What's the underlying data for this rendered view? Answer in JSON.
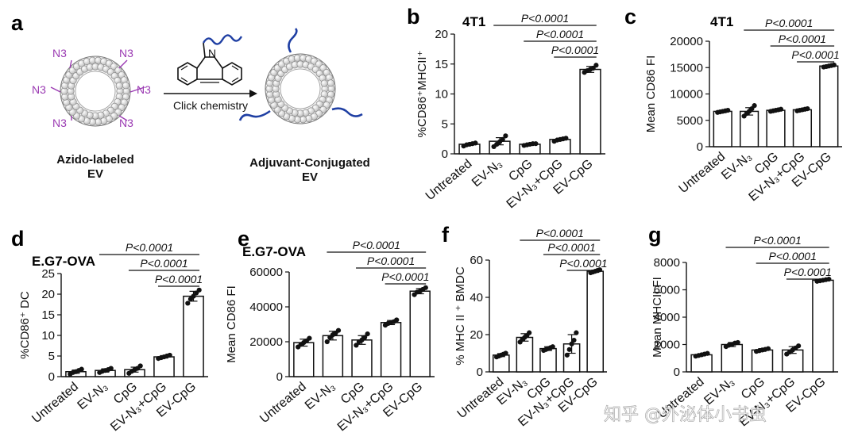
{
  "watermark": "知乎 @外泌体小书虫",
  "schematic": {
    "panel": "a",
    "left_caption_1": "Azido-labeled",
    "left_caption_2": "EV",
    "right_caption_1": "Adjuvant-Conjugated",
    "right_caption_2": "EV",
    "arrow_label": "Click chemistry",
    "azide_label": "N3",
    "ring_atom": "N",
    "colors": {
      "azide": "#9b3bb3",
      "adjuvant": "#1f3fa3",
      "bead": "#d9d9d9",
      "bead_stroke": "#8a8a8a"
    }
  },
  "chart_data": [
    {
      "panel": "b",
      "type": "bar",
      "title": "4T1",
      "ylabel": "%CD86⁺MHCII⁺",
      "ylim": [
        0,
        20
      ],
      "yticks": [
        0,
        5,
        10,
        15,
        20
      ],
      "categories": [
        "Untreated",
        "EV-N₃",
        "CpG",
        "EV-N₃+CpG",
        "EV-CpG"
      ],
      "values": [
        1.6,
        2.1,
        1.6,
        2.4,
        14.1
      ],
      "errors": [
        0.2,
        0.6,
        0.2,
        0.2,
        0.5
      ],
      "points": [
        [
          1.3,
          1.5,
          1.6,
          1.7,
          1.8
        ],
        [
          1.2,
          1.6,
          2.0,
          2.4,
          3.0
        ],
        [
          1.4,
          1.5,
          1.6,
          1.7,
          1.7
        ],
        [
          2.1,
          2.3,
          2.4,
          2.5,
          2.6
        ],
        [
          13.6,
          13.9,
          14.1,
          14.3,
          14.8
        ]
      ],
      "significance": [
        "P<0.0001",
        "P<0.0001",
        "P<0.0001"
      ],
      "sig_pairs": [
        [
          1,
          4
        ],
        [
          2,
          4
        ],
        [
          3,
          4
        ]
      ]
    },
    {
      "panel": "c",
      "type": "bar",
      "title": "4T1",
      "ylabel": "Mean CD86 FI",
      "ylim": [
        0,
        20000
      ],
      "yticks": [
        0,
        5000,
        10000,
        15000,
        20000
      ],
      "categories": [
        "Untreated",
        "EV-N₃",
        "CpG",
        "EV-N₃+CpG",
        "EV-CpG"
      ],
      "values": [
        6700,
        6700,
        6900,
        7000,
        15300
      ],
      "errors": [
        200,
        700,
        200,
        200,
        200
      ],
      "points": [
        [
          6500,
          6600,
          6700,
          6800,
          6900
        ],
        [
          5800,
          6300,
          6700,
          7200,
          7800
        ],
        [
          6700,
          6800,
          6900,
          7000,
          7100
        ],
        [
          6800,
          6900,
          7000,
          7100,
          7200
        ],
        [
          15100,
          15200,
          15300,
          15400,
          15500
        ]
      ],
      "significance": [
        "P<0.0001",
        "P<0.0001",
        "P<0.0001"
      ],
      "sig_pairs": [
        [
          1,
          4
        ],
        [
          2,
          4
        ],
        [
          3,
          4
        ]
      ]
    },
    {
      "panel": "d",
      "type": "bar",
      "title": "E.G7-OVA",
      "ylabel": "%CD86⁺ DC",
      "ylim": [
        0,
        25
      ],
      "yticks": [
        0,
        5,
        10,
        15,
        20,
        25
      ],
      "categories": [
        "Untreated",
        "EV-N₃",
        "CpG",
        "EV-N₃+CpG",
        "EV-CpG"
      ],
      "values": [
        1.2,
        1.5,
        1.7,
        4.8,
        19.5
      ],
      "errors": [
        0.4,
        0.4,
        0.6,
        0.3,
        1.2
      ],
      "points": [
        [
          0.6,
          1.0,
          1.2,
          1.5,
          1.8
        ],
        [
          1.0,
          1.3,
          1.5,
          1.7,
          2.0
        ],
        [
          0.8,
          1.3,
          1.7,
          2.0,
          2.6
        ],
        [
          4.4,
          4.6,
          4.8,
          5.0,
          5.2
        ],
        [
          17.8,
          18.8,
          19.5,
          20.3,
          21.0
        ]
      ],
      "significance": [
        "P<0.0001",
        "P<0.0001",
        "P<0.0001"
      ],
      "sig_pairs": [
        [
          1,
          4
        ],
        [
          2,
          4
        ],
        [
          3,
          4
        ]
      ]
    },
    {
      "panel": "e",
      "type": "bar",
      "title": "E.G7-OVA",
      "ylabel": "Mean CD86 FI",
      "ylim": [
        0,
        60000
      ],
      "yticks": [
        0,
        20000,
        40000,
        60000
      ],
      "categories": [
        "Untreated",
        "EV-N₃",
        "CpG",
        "EV-N₃+CpG",
        "EV-CpG"
      ],
      "values": [
        19500,
        23500,
        21000,
        31000,
        49000
      ],
      "errors": [
        2000,
        2500,
        2500,
        1200,
        1500
      ],
      "points": [
        [
          17000,
          18500,
          19500,
          20500,
          22000
        ],
        [
          20000,
          22500,
          24000,
          25000,
          26500
        ],
        [
          18000,
          20000,
          21000,
          22500,
          24500
        ],
        [
          29500,
          30500,
          31000,
          31500,
          32500
        ],
        [
          47000,
          48500,
          49000,
          50000,
          51000
        ]
      ],
      "significance": [
        "P<0.0001",
        "P<0.0001",
        "P<0.0001"
      ],
      "sig_pairs": [
        [
          1,
          4
        ],
        [
          2,
          4
        ],
        [
          3,
          4
        ]
      ]
    },
    {
      "panel": "f",
      "type": "bar",
      "title": "",
      "ylabel": "% MHC II ⁺ BMDC",
      "ylim": [
        0,
        60
      ],
      "yticks": [
        0,
        20,
        40,
        60
      ],
      "categories": [
        "Untreated",
        "EV-N₃",
        "CpG",
        "EV-N₃+CpG",
        "EV-CpG"
      ],
      "values": [
        9,
        18.5,
        12.5,
        15,
        54
      ],
      "errors": [
        0.8,
        2,
        1,
        5,
        0.6
      ],
      "points": [
        [
          8,
          8.5,
          9,
          9.5,
          10
        ],
        [
          16,
          17.5,
          18.5,
          19.5,
          21
        ],
        [
          11.5,
          12,
          12.5,
          13,
          13.5
        ],
        [
          9,
          12,
          15,
          17,
          21
        ],
        [
          53.2,
          53.6,
          54,
          54.4,
          54.8
        ]
      ],
      "significance": [
        "P<0.0001",
        "P<0.0001",
        "P<0.0001"
      ],
      "sig_pairs": [
        [
          1,
          4
        ],
        [
          2,
          4
        ],
        [
          3,
          4
        ]
      ]
    },
    {
      "panel": "g",
      "type": "bar",
      "title": "",
      "ylabel": "Mean MHCII FI",
      "ylim": [
        0,
        8000
      ],
      "yticks": [
        0,
        2000,
        4000,
        6000,
        8000
      ],
      "categories": [
        "Untreated",
        "EV-N₃",
        "CpG",
        "EV-N₃+CpG",
        "EV-CpG"
      ],
      "values": [
        1250,
        2000,
        1600,
        1600,
        6700
      ],
      "errors": [
        80,
        150,
        100,
        250,
        60
      ],
      "points": [
        [
          1150,
          1200,
          1250,
          1300,
          1350
        ],
        [
          1850,
          1950,
          2000,
          2100,
          2150
        ],
        [
          1500,
          1550,
          1600,
          1650,
          1700
        ],
        [
          1300,
          1450,
          1600,
          1750,
          1900
        ],
        [
          6620,
          6660,
          6700,
          6740,
          6780
        ]
      ],
      "significance": [
        "P<0.0001",
        "P<0.0001",
        "P<0.0001"
      ],
      "sig_pairs": [
        [
          1,
          4
        ],
        [
          2,
          4
        ],
        [
          3,
          4
        ]
      ]
    }
  ]
}
